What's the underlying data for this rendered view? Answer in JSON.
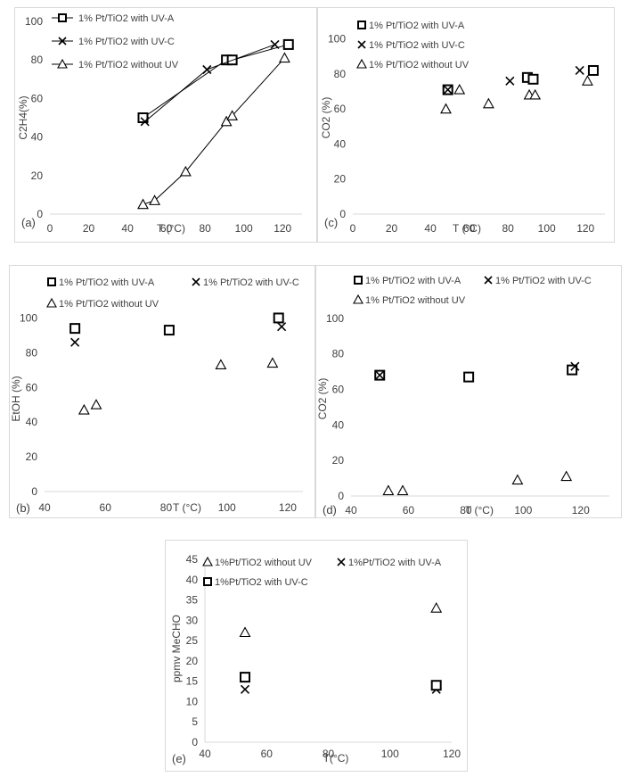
{
  "chart_data": [
    {
      "id": "a",
      "type": "line",
      "panel_label": "(a)",
      "xlabel": "T (°C)",
      "ylabel": "C2H4(%)",
      "xlim": [
        0,
        130
      ],
      "ylim": [
        0,
        100
      ],
      "xticks": [
        0,
        20,
        40,
        60,
        80,
        100,
        120
      ],
      "yticks": [
        0,
        20,
        40,
        60,
        80,
        100
      ],
      "legend_position": "top-left",
      "series": [
        {
          "name": "1% Pt/TiO2 with UV-A",
          "marker": "square",
          "line": true,
          "x": [
            48,
            91,
            94,
            123
          ],
          "y": [
            50,
            80,
            80,
            88
          ]
        },
        {
          "name": "1% Pt/TiO2 with UV-C",
          "marker": "x",
          "line": true,
          "x": [
            49,
            81,
            116
          ],
          "y": [
            48,
            75,
            88
          ]
        },
        {
          "name": "1% Pt/TiO2 without UV",
          "marker": "triangle",
          "line": true,
          "x": [
            48,
            54,
            70,
            91,
            94,
            121
          ],
          "y": [
            5,
            7,
            22,
            48,
            51,
            81
          ]
        }
      ]
    },
    {
      "id": "c",
      "type": "scatter",
      "panel_label": "(c)",
      "xlabel": "T (°C)",
      "ylabel": "CO2 (%)",
      "xlim": [
        0,
        130
      ],
      "ylim": [
        0,
        110
      ],
      "xticks": [
        0,
        20,
        40,
        60,
        80,
        100,
        120
      ],
      "yticks": [
        0,
        20,
        40,
        60,
        80,
        100
      ],
      "legend_position": "top-left",
      "series": [
        {
          "name": "1% Pt/TiO2 with UV-A",
          "marker": "square",
          "line": false,
          "x": [
            49,
            90,
            93,
            124
          ],
          "y": [
            71,
            78,
            77,
            82
          ]
        },
        {
          "name": "1% Pt/TiO2 with UV-C",
          "marker": "x",
          "line": false,
          "x": [
            49,
            81,
            117
          ],
          "y": [
            71,
            76,
            82
          ]
        },
        {
          "name": "1% Pt/TiO2 without UV",
          "marker": "triangle",
          "line": false,
          "x": [
            48,
            55,
            70,
            91,
            94,
            121
          ],
          "y": [
            60,
            71,
            63,
            68,
            68,
            76
          ]
        }
      ]
    },
    {
      "id": "b",
      "type": "scatter",
      "panel_label": "(b)",
      "xlabel": "T (°C)",
      "ylabel": "EtOH (%)",
      "xlim": [
        40,
        125
      ],
      "ylim": [
        0,
        110
      ],
      "xticks": [
        40,
        60,
        80,
        100,
        120
      ],
      "yticks": [
        0,
        20,
        40,
        60,
        80,
        100
      ],
      "legend_position": "top",
      "series": [
        {
          "name": "1% Pt/TiO2 with UV-A",
          "marker": "square",
          "line": false,
          "x": [
            50,
            81,
            117
          ],
          "y": [
            94,
            93,
            100
          ]
        },
        {
          "name": "1% Pt/TiO2 with UV-C",
          "marker": "x",
          "line": false,
          "x": [
            50,
            118
          ],
          "y": [
            86,
            95
          ]
        },
        {
          "name": "1% Pt/TiO2 without UV",
          "marker": "triangle",
          "line": false,
          "x": [
            53,
            57,
            98,
            115
          ],
          "y": [
            47,
            50,
            73,
            74
          ]
        }
      ]
    },
    {
      "id": "d",
      "type": "scatter",
      "panel_label": "(d)",
      "xlabel": "T (°C)",
      "ylabel": "CO2 (%)",
      "xlim": [
        40,
        130
      ],
      "ylim": [
        0,
        110
      ],
      "xticks": [
        40,
        60,
        80,
        100,
        120
      ],
      "yticks": [
        0,
        20,
        40,
        60,
        80,
        100
      ],
      "legend_position": "top",
      "series": [
        {
          "name": "1% Pt/TiO2 with UV-A",
          "marker": "square",
          "line": false,
          "x": [
            50,
            81,
            117
          ],
          "y": [
            68,
            67,
            71
          ]
        },
        {
          "name": "1% Pt/TiO2 with UV-C",
          "marker": "x",
          "line": false,
          "x": [
            50,
            118
          ],
          "y": [
            68,
            73
          ]
        },
        {
          "name": "1% Pt/TiO2 without UV",
          "marker": "triangle",
          "line": false,
          "x": [
            53,
            58,
            98,
            115
          ],
          "y": [
            3,
            3,
            9,
            11
          ]
        }
      ]
    },
    {
      "id": "e",
      "type": "scatter",
      "panel_label": "(e)",
      "xlabel": "T(°C)",
      "ylabel": "ppmv MeCHO",
      "xlim": [
        40,
        120
      ],
      "ylim": [
        0,
        45
      ],
      "xticks": [
        40,
        60,
        80,
        100,
        120
      ],
      "yticks": [
        0,
        5,
        10,
        15,
        20,
        25,
        30,
        35,
        40,
        45
      ],
      "legend_position": "top",
      "series": [
        {
          "name": "1%Pt/TiO2 without UV",
          "marker": "triangle",
          "line": false,
          "x": [
            53,
            115
          ],
          "y": [
            27,
            33
          ]
        },
        {
          "name": "1%Pt/TiO2 with UV-A",
          "marker": "x",
          "line": false,
          "x": [
            53,
            115
          ],
          "y": [
            13,
            13
          ]
        },
        {
          "name": "1%Pt/TiO2 with UV-C",
          "marker": "square",
          "line": false,
          "x": [
            53,
            115
          ],
          "y": [
            16,
            14
          ]
        }
      ]
    }
  ]
}
